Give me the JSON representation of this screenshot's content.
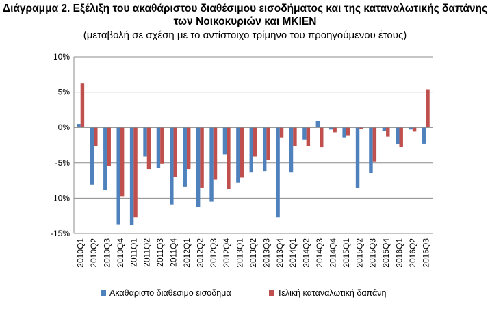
{
  "chart_data": {
    "type": "bar",
    "title": "Διάγραμμα 2. Εξέλιξη του ακαθάριστου διαθέσιμου εισοδήματος και της καταναλωτικής δαπάνης των Νοικοκυριών και ΜΚΙΕΝ",
    "subtitle": "(μεταβολή σε σχέση με το αντίστοιχο τρίμηνο του προηγούμενου έτους)",
    "xlabel": "",
    "ylabel": "",
    "ylim": [
      -15,
      10
    ],
    "yticks": [
      10,
      5,
      0,
      -5,
      -10,
      -15
    ],
    "ytick_labels": [
      "10%",
      "5%",
      "0%",
      "-5%",
      "-10%",
      "-15%"
    ],
    "grid": true,
    "legend_position": "bottom",
    "categories": [
      "2010Q1",
      "2010Q2",
      "2010Q3",
      "2010Q4",
      "2011Q1",
      "2011Q2",
      "2011Q3",
      "2011Q4",
      "2012Q1",
      "2012Q2",
      "2012Q3",
      "2012Q4",
      "2013Q1",
      "2013Q2",
      "2013Q3",
      "2013Q4",
      "2014Q1",
      "2014Q2",
      "2014Q3",
      "2014Q4",
      "2015Q1",
      "2015Q2",
      "2015Q3",
      "2015Q4",
      "2016Q1",
      "2016Q2",
      "2016Q3"
    ],
    "series": [
      {
        "name": "Ακαθαριστο διαθεσιμο εισοδημα",
        "color": "#4f81bd",
        "values": [
          0.5,
          -8.1,
          -8.9,
          -13.7,
          -13.8,
          -4.1,
          -5.7,
          -10.9,
          -8.4,
          -11.3,
          -10.5,
          -3.8,
          -7.8,
          -6.3,
          -6.2,
          -12.7,
          -6.3,
          -1.7,
          0.9,
          -0.3,
          -1.4,
          -8.6,
          -6.4,
          -0.5,
          -2.4,
          -0.3,
          -2.3
        ]
      },
      {
        "name": "Τελική καταναλωτική δαπάνη",
        "color": "#c0504d",
        "values": [
          6.3,
          -2.6,
          -5.5,
          -9.8,
          -12.7,
          -5.9,
          -5.1,
          -7.0,
          -5.9,
          -8.5,
          -7.4,
          -8.7,
          -7.1,
          -4.1,
          -4.6,
          -1.4,
          -2.6,
          -2.6,
          -2.8,
          -0.7,
          -1.1,
          -0.2,
          -4.8,
          -1.3,
          -2.7,
          -0.6,
          5.4
        ]
      }
    ]
  }
}
